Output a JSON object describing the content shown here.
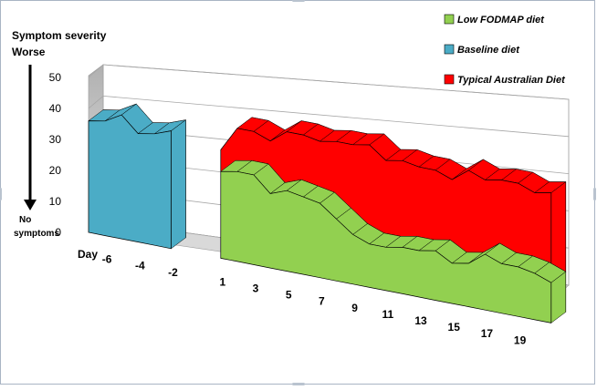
{
  "chart_data": {
    "type": "area",
    "title": "",
    "ylabel_lines": [
      "Symptom severity",
      "Worse"
    ],
    "ylabel_bottom_lines": [
      "No",
      "symptoms"
    ],
    "xlabel": "Day",
    "y_ticks": [
      "0",
      "10",
      "20",
      "30",
      "40",
      "50"
    ],
    "ylim": [
      0,
      50
    ],
    "x_ticks": [
      "-6",
      "-4",
      "-2",
      "1",
      "3",
      "5",
      "7",
      "9",
      "11",
      "13",
      "15",
      "17",
      "19"
    ],
    "legend_position": "top-right",
    "series": [
      {
        "name": "Low FODMAP diet",
        "color": "#92d050",
        "x": [
          1,
          2,
          3,
          4,
          5,
          6,
          7,
          8,
          9,
          10,
          11,
          12,
          13,
          14,
          15,
          16,
          17,
          18,
          19,
          20,
          21
        ],
        "values": [
          28,
          29,
          29,
          24,
          26,
          25,
          24,
          20,
          16,
          14,
          14,
          15,
          15,
          16,
          13,
          14,
          18,
          16,
          16,
          15,
          13
        ]
      },
      {
        "name": "Baseline diet",
        "color": "#4bacc6",
        "x": [
          -7,
          -6,
          -5,
          -4,
          -3,
          -2
        ],
        "values": [
          36,
          37,
          40,
          35,
          36,
          38
        ]
      },
      {
        "name": "Typical Australian Diet",
        "color": "#ff0000",
        "x": [
          1,
          2,
          3,
          4,
          5,
          6,
          7,
          8,
          9,
          10,
          11,
          12,
          13,
          14,
          15,
          16,
          17,
          18,
          19,
          20,
          21
        ],
        "values": [
          35,
          43,
          43,
          41,
          45,
          45,
          44,
          45,
          45,
          46,
          42,
          43,
          42,
          42,
          40,
          44,
          42,
          43,
          43,
          41,
          42
        ]
      }
    ]
  }
}
